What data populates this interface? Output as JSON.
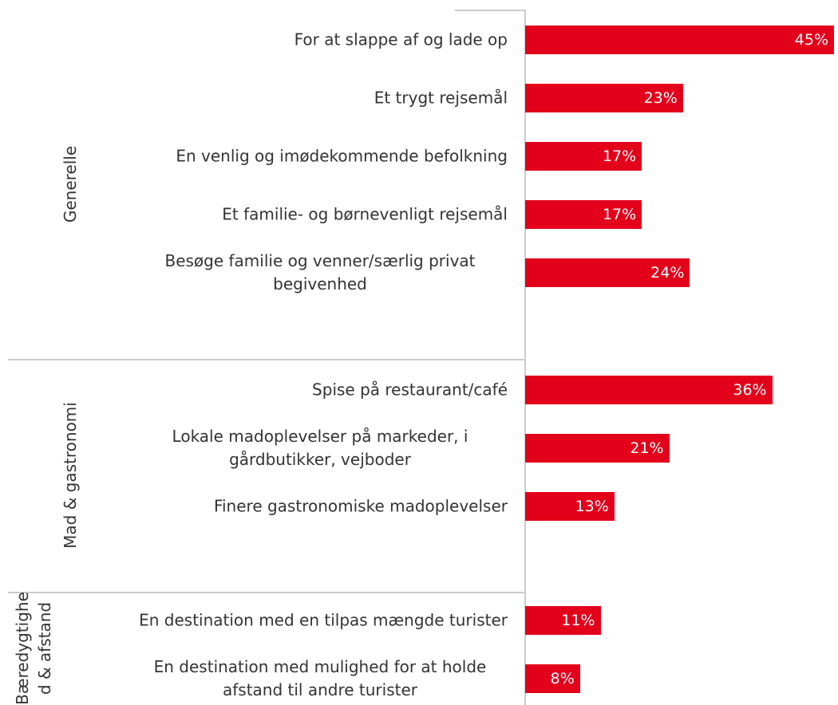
{
  "chart_data": {
    "type": "bar",
    "orientation": "horizontal",
    "color": "#e3001b",
    "groups": [
      {
        "name": "Generelle",
        "categories": [
          "For at slappe af og lade op",
          "Et trygt rejsemål",
          "En venlig og imødekommende befolkning",
          "Et familie- og børnevenligt rejsemål",
          "Besøge familie og venner/særlig privat begivenhed"
        ],
        "values": [
          45,
          23,
          17,
          17,
          24
        ],
        "value_labels": [
          "45%",
          "23%",
          "17%",
          "17%",
          "24%"
        ]
      },
      {
        "name": "Mad & gastronomi",
        "categories": [
          "Spise på restaurant/café",
          "Lokale madoplevelser på markeder, i gårdbutikker, vejboder",
          "Finere gastronomiske madoplevelser"
        ],
        "values": [
          36,
          21,
          13
        ],
        "value_labels": [
          "36%",
          "21%",
          "13%"
        ]
      },
      {
        "name": "Bæredygtighed & afstand",
        "categories": [
          "En destination med en tilpas mængde turister",
          "En destination med mulighed for at holde afstand til andre turister"
        ],
        "values": [
          11,
          8
        ],
        "value_labels": [
          "11%",
          "8%"
        ]
      }
    ]
  }
}
